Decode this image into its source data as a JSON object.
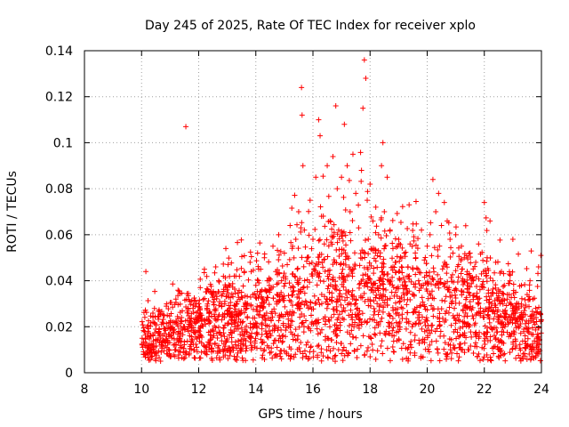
{
  "chart_data": {
    "type": "scatter",
    "title": "Day 245 of 2025, Rate Of TEC Index for receiver xplo",
    "xlabel": "GPS time / hours",
    "ylabel": "ROTI / TECUs",
    "xlim": [
      8,
      24
    ],
    "ylim": [
      0,
      0.14
    ],
    "xticks": [
      8,
      10,
      12,
      14,
      16,
      18,
      20,
      22,
      24
    ],
    "yticks": [
      0,
      0.02,
      0.04,
      0.06,
      0.08,
      0.1,
      0.12,
      0.14
    ],
    "xtick_labels": [
      "8",
      "10",
      "12",
      "14",
      "16",
      "18",
      "20",
      "22",
      "24"
    ],
    "ytick_labels": [
      "0",
      "0.02",
      "0.04",
      "0.06",
      "0.08",
      "0.1",
      "0.12",
      "0.14"
    ],
    "grid": true,
    "marker": "+",
    "color": "#ff0000",
    "x_range_of_data": [
      10,
      24
    ],
    "series": [
      {
        "name": "ROTI",
        "x": [
          10.02,
          10.1,
          10.15,
          10.2,
          10.3,
          10.4,
          10.5,
          10.6,
          10.7,
          10.8,
          10.9,
          11.0,
          11.1,
          11.2,
          11.3,
          11.4,
          11.5,
          11.55,
          11.6,
          11.7,
          11.8,
          11.9,
          12.0,
          12.1,
          12.2,
          12.3,
          12.4,
          12.5,
          12.6,
          12.7,
          12.8,
          12.9,
          12.95,
          13.0,
          13.1,
          13.2,
          13.3,
          13.35,
          13.4,
          13.5,
          13.6,
          13.7,
          13.8,
          13.9,
          14.0,
          14.1,
          14.2,
          14.3,
          14.4,
          14.5,
          14.6,
          14.7,
          14.8,
          14.9,
          15.0,
          15.1,
          15.2,
          15.3,
          15.4,
          15.5,
          15.6,
          15.62,
          15.65,
          15.7,
          15.8,
          15.9,
          16.0,
          16.1,
          16.2,
          16.25,
          16.3,
          16.4,
          16.5,
          16.6,
          16.7,
          16.8,
          16.85,
          16.9,
          17.0,
          17.1,
          17.2,
          17.3,
          17.4,
          17.5,
          17.6,
          17.7,
          17.75,
          17.8,
          17.85,
          17.9,
          18.0,
          18.1,
          18.2,
          18.3,
          18.4,
          18.45,
          18.5,
          18.6,
          18.7,
          18.8,
          18.9,
          19.0,
          19.1,
          19.2,
          19.3,
          19.4,
          19.5,
          19.6,
          19.7,
          19.8,
          19.9,
          20.0,
          20.1,
          20.2,
          20.3,
          20.4,
          20.5,
          20.6,
          20.7,
          20.8,
          20.9,
          21.0,
          21.1,
          21.2,
          21.3,
          21.4,
          21.5,
          21.6,
          21.7,
          21.8,
          21.9,
          22.0,
          22.1,
          22.2,
          22.3,
          22.4,
          22.5,
          22.6,
          22.7,
          22.8,
          22.9,
          23.0,
          23.1,
          23.2,
          23.3,
          23.4,
          23.5,
          23.6,
          23.7,
          23.8,
          23.9,
          23.98
        ],
        "y": [
          0.015,
          0.018,
          0.044,
          0.02,
          0.016,
          0.022,
          0.014,
          0.018,
          0.021,
          0.017,
          0.025,
          0.019,
          0.022,
          0.032,
          0.018,
          0.024,
          0.02,
          0.107,
          0.026,
          0.021,
          0.028,
          0.023,
          0.03,
          0.025,
          0.045,
          0.029,
          0.022,
          0.035,
          0.027,
          0.04,
          0.03,
          0.024,
          0.054,
          0.036,
          0.028,
          0.033,
          0.042,
          0.031,
          0.025,
          0.035,
          0.044,
          0.03,
          0.048,
          0.034,
          0.038,
          0.045,
          0.033,
          0.05,
          0.04,
          0.036,
          0.055,
          0.044,
          0.06,
          0.04,
          0.052,
          0.047,
          0.064,
          0.043,
          0.058,
          0.07,
          0.124,
          0.112,
          0.09,
          0.062,
          0.05,
          0.075,
          0.058,
          0.085,
          0.11,
          0.103,
          0.068,
          0.056,
          0.09,
          0.066,
          0.094,
          0.116,
          0.08,
          0.062,
          0.085,
          0.108,
          0.09,
          0.07,
          0.095,
          0.078,
          0.063,
          0.088,
          0.115,
          0.136,
          0.128,
          0.075,
          0.082,
          0.066,
          0.072,
          0.06,
          0.09,
          0.1,
          0.07,
          0.085,
          0.062,
          0.054,
          0.048,
          0.058,
          0.046,
          0.052,
          0.042,
          0.056,
          0.045,
          0.05,
          0.04,
          0.062,
          0.049,
          0.055,
          0.06,
          0.084,
          0.07,
          0.078,
          0.064,
          0.074,
          0.066,
          0.058,
          0.052,
          0.06,
          0.047,
          0.055,
          0.05,
          0.044,
          0.052,
          0.04,
          0.048,
          0.056,
          0.043,
          0.074,
          0.05,
          0.066,
          0.04,
          0.048,
          0.036,
          0.044,
          0.038,
          0.032,
          0.04,
          0.058,
          0.035,
          0.03,
          0.038,
          0.027,
          0.034,
          0.04,
          0.032,
          0.028,
          0.046,
          0.051
        ]
      }
    ],
    "background_cloud": {
      "x_start": 10.0,
      "x_end": 24.0,
      "base_level": [
        [
          10,
          0.015
        ],
        [
          12,
          0.02
        ],
        [
          14,
          0.025
        ],
        [
          16,
          0.032
        ],
        [
          18,
          0.035
        ],
        [
          20,
          0.032
        ],
        [
          22,
          0.026
        ],
        [
          24,
          0.018
        ]
      ],
      "min_value": 0.005
    }
  }
}
